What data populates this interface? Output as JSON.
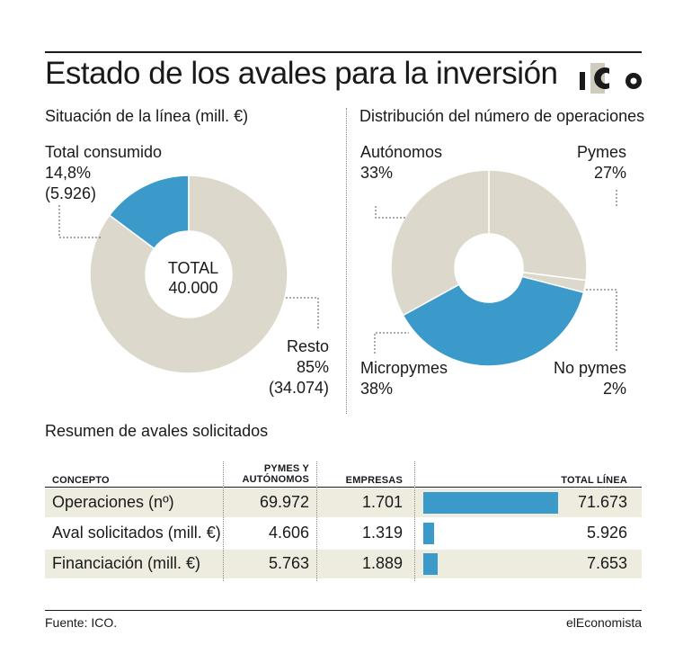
{
  "title": "Estado de los avales para la inversión",
  "logo_text": "ICO",
  "colors": {
    "beige": "#dcd9cc",
    "blue": "#3b9ac9",
    "row_band": "#eeecdf",
    "text": "#1a1a1a"
  },
  "left_chart": {
    "subtitle": "Situación de la línea (mill. €)",
    "center_line1": "TOTAL",
    "center_line2": "40.000",
    "consumed_label": "Total consumido",
    "consumed_pct": "14,8%",
    "consumed_value": "(5.926)",
    "rest_label": "Resto",
    "rest_pct": "85%",
    "rest_value": "(34.074)"
  },
  "right_chart": {
    "subtitle": "Distribución del número de operaciones",
    "autonomos_label": "Autónomos",
    "autonomos_pct": "33%",
    "pymes_label": "Pymes",
    "pymes_pct": "27%",
    "micropymes_label": "Micropymes",
    "micropymes_pct": "38%",
    "nopymes_label": "No pymes",
    "nopymes_pct": "2%"
  },
  "chart_data": [
    {
      "type": "pie",
      "title": "Situación de la línea (mill. €)",
      "categories": [
        "Total consumido",
        "Resto"
      ],
      "values": [
        5926,
        34074
      ],
      "percent": [
        14.8,
        85
      ],
      "total": 40000,
      "colors": [
        "#3b9ac9",
        "#dcd9cc"
      ]
    },
    {
      "type": "pie",
      "title": "Distribución del número de operaciones",
      "categories": [
        "Pymes",
        "No pymes",
        "Micropymes",
        "Autónomos"
      ],
      "values": [
        27,
        2,
        38,
        33
      ],
      "colors": [
        "#dcd9cc",
        "#dcd9cc",
        "#3b9ac9",
        "#dcd9cc"
      ]
    },
    {
      "type": "table",
      "title": "Resumen de avales solicitados",
      "columns": [
        "CONCEPTO",
        "PYMES Y AUTÓNOMOS",
        "EMPRESAS",
        "TOTAL LÍNEA"
      ],
      "rows": [
        {
          "concept": "Operaciones (nº)",
          "pymes": "69.972",
          "empresas": "1.701",
          "total": "71.673",
          "total_value": 71673
        },
        {
          "concept": "Aval solicitados (mill. €)",
          "pymes": "4.606",
          "empresas": "1.319",
          "total": "5.926",
          "total_value": 5926
        },
        {
          "concept": "Financiación (mill. €)",
          "pymes": "5.763",
          "empresas": "1.889",
          "total": "7.653",
          "total_value": 7653
        }
      ],
      "bar_max": 71673
    }
  ],
  "table": {
    "title": "Resumen de avales solicitados",
    "header_concepto": "CONCEPTO",
    "header_pymes_1": "PYMES Y",
    "header_pymes_2": "AUTÓNOMOS",
    "header_empresas": "EMPRESAS",
    "header_total": "TOTAL LÍNEA"
  },
  "footer": {
    "source": "Fuente: ICO.",
    "brand": "elEconomista"
  }
}
